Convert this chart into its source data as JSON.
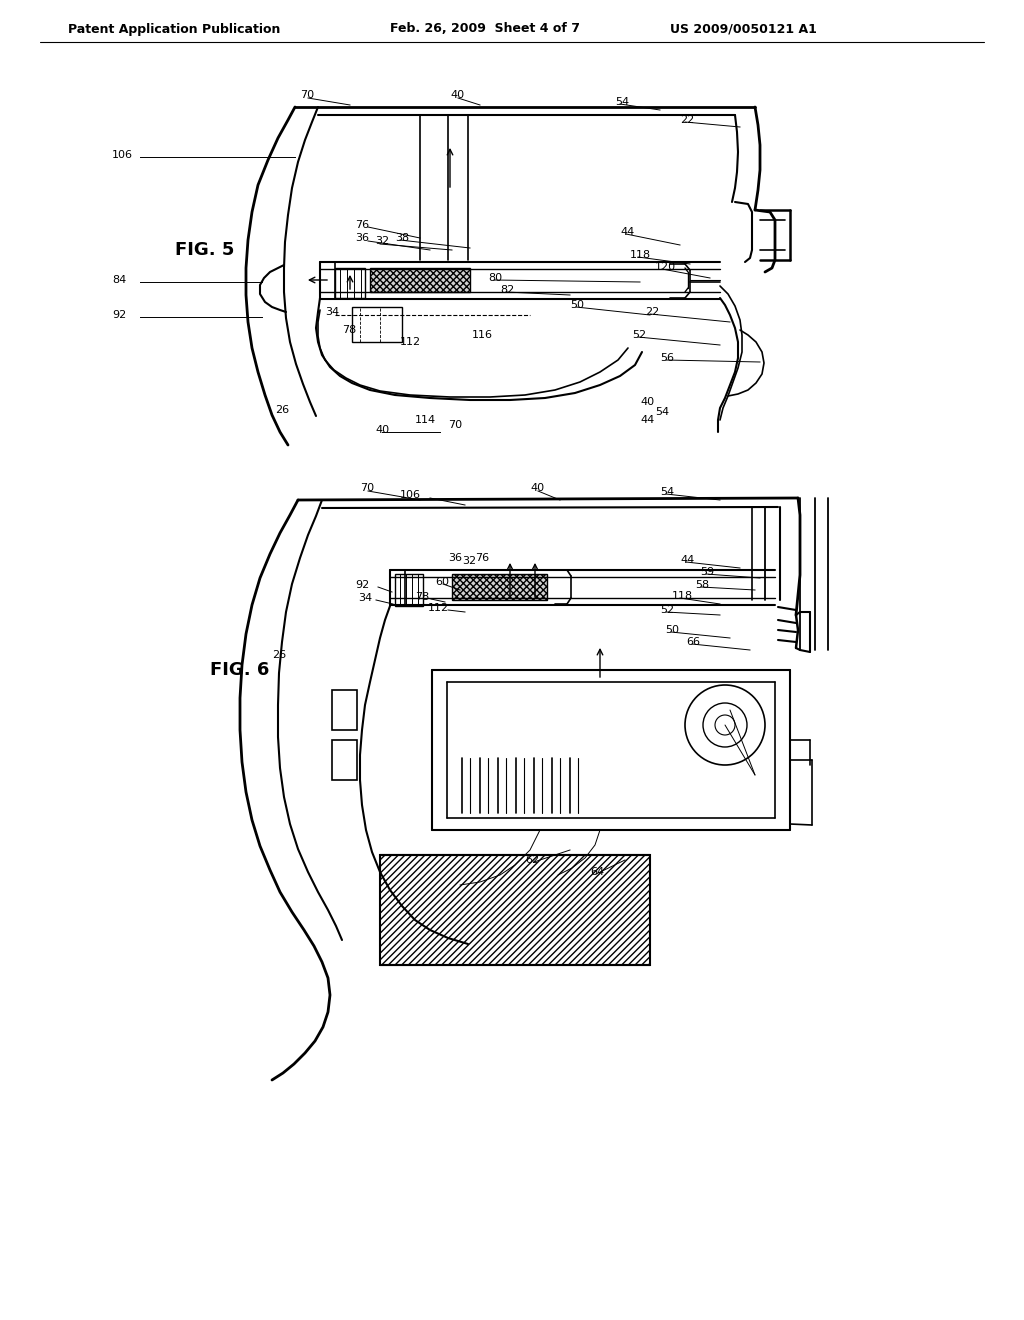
{
  "bg_color": "#ffffff",
  "line_color": "#000000",
  "header_left": "Patent Application Publication",
  "header_mid": "Feb. 26, 2009  Sheet 4 of 7",
  "header_right": "US 2009/0050121 A1",
  "fig5_label": "FIG. 5",
  "fig6_label": "FIG. 6",
  "header_font_size": 9,
  "label_font_size": 8,
  "fig_label_font_size": 13
}
